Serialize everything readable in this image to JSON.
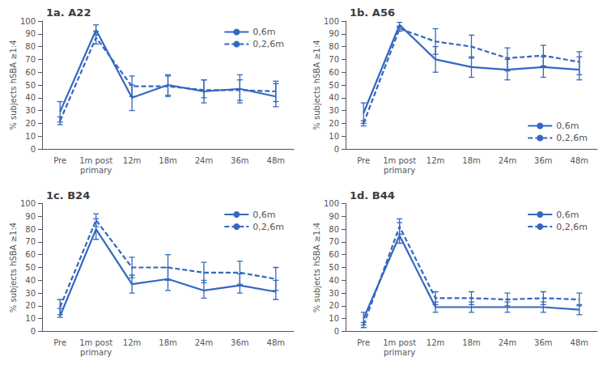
{
  "chart_data": [
    {
      "type": "line",
      "title": "1a. A22",
      "categories": [
        "Pre",
        "1m post\nprimary",
        "12m",
        "18m",
        "24m",
        "36m",
        "48m"
      ],
      "ylabel": "% subjects hSBA ≥1:4",
      "ylim": [
        0,
        100
      ],
      "yticks": [
        0,
        10,
        20,
        30,
        40,
        50,
        60,
        70,
        80,
        90,
        100
      ],
      "grid": false,
      "legend": "upper right",
      "series": [
        {
          "name": "0,6m",
          "color": "#3467c0",
          "line_style": "solid",
          "values": [
            29,
            93,
            40,
            50,
            45,
            47,
            41
          ],
          "yerr_lo": [
            8,
            4,
            10,
            8,
            9,
            11,
            8
          ],
          "yerr_hi": [
            8,
            4,
            10,
            8,
            9,
            11,
            10
          ]
        },
        {
          "name": "0,2,6m",
          "color": "#3467c0",
          "line_style": "dashed",
          "values": [
            22,
            87,
            49,
            49,
            46,
            46,
            45
          ],
          "yerr_lo": [
            3,
            5,
            8,
            8,
            6,
            8,
            8
          ],
          "yerr_hi": [
            3,
            5,
            8,
            8,
            8,
            8,
            8
          ]
        }
      ]
    },
    {
      "type": "line",
      "title": "1b. A56",
      "categories": [
        "Pre",
        "1m post\nprimary",
        "12m",
        "18m",
        "24m",
        "36m",
        "48m"
      ],
      "ylabel": "% subjects hSBA ≥1:4",
      "ylim": [
        0,
        100
      ],
      "yticks": [
        0,
        10,
        20,
        30,
        40,
        50,
        60,
        70,
        80,
        90,
        100
      ],
      "grid": false,
      "legend": "lower right",
      "series": [
        {
          "name": "0,6m",
          "color": "#3467c0",
          "line_style": "solid",
          "values": [
            28,
            97,
            70,
            64,
            62,
            64,
            62
          ],
          "yerr_lo": [
            8,
            2,
            10,
            8,
            8,
            8,
            8
          ],
          "yerr_hi": [
            8,
            2,
            10,
            8,
            8,
            8,
            10
          ]
        },
        {
          "name": "0,2,6m",
          "color": "#3467c0",
          "line_style": "dashed",
          "values": [
            20,
            94,
            84,
            80,
            71,
            73,
            68
          ],
          "yerr_lo": [
            2,
            2,
            10,
            9,
            10,
            8,
            10
          ],
          "yerr_hi": [
            2,
            2,
            10,
            9,
            8,
            8,
            8
          ]
        }
      ]
    },
    {
      "type": "line",
      "title": "1c. B24",
      "categories": [
        "Pre",
        "1m post\nprimary",
        "12m",
        "18m",
        "24m",
        "36m",
        "48m"
      ],
      "ylabel": "% subjects hSBA ≥1:4",
      "ylim": [
        0,
        100
      ],
      "yticks": [
        0,
        10,
        20,
        30,
        40,
        50,
        60,
        70,
        80,
        90,
        100
      ],
      "grid": false,
      "legend": "upper right",
      "series": [
        {
          "name": "0,6m",
          "color": "#3467c0",
          "line_style": "solid",
          "values": [
            12,
            80,
            37,
            41,
            32,
            36,
            31
          ],
          "yerr_lo": [
            1,
            8,
            7,
            9,
            6,
            6,
            6
          ],
          "yerr_hi": [
            6,
            8,
            7,
            9,
            8,
            9,
            9
          ]
        },
        {
          "name": "0,2,6m",
          "color": "#3467c0",
          "line_style": "dashed",
          "values": [
            19,
            87,
            50,
            50,
            46,
            46,
            41
          ],
          "yerr_lo": [
            6,
            5,
            8,
            10,
            8,
            9,
            9
          ],
          "yerr_hi": [
            6,
            5,
            8,
            10,
            8,
            9,
            9
          ]
        }
      ]
    },
    {
      "type": "line",
      "title": "1d. B44",
      "categories": [
        "Pre",
        "1m post\nprimary",
        "12m",
        "18m",
        "24m",
        "36m",
        "48m"
      ],
      "ylabel": "% subjects hSBA ≥1:4",
      "ylim": [
        0,
        100
      ],
      "yticks": [
        0,
        10,
        20,
        30,
        40,
        50,
        60,
        70,
        80,
        90,
        100
      ],
      "grid": false,
      "legend": "upper right",
      "series": [
        {
          "name": "0,6m",
          "color": "#3467c0",
          "line_style": "solid",
          "values": [
            10,
            75,
            19,
            19,
            19,
            19,
            17
          ],
          "yerr_lo": [
            5,
            6,
            4,
            4,
            4,
            4,
            4
          ],
          "yerr_hi": [
            5,
            10,
            4,
            4,
            4,
            4,
            4
          ]
        },
        {
          "name": "0,2,6m",
          "color": "#3467c0",
          "line_style": "dashed",
          "values": [
            5,
            82,
            26,
            26,
            25,
            26,
            25
          ],
          "yerr_lo": [
            2,
            6,
            5,
            5,
            5,
            5,
            5
          ],
          "yerr_hi": [
            2,
            6,
            5,
            5,
            5,
            5,
            5
          ]
        }
      ]
    }
  ]
}
